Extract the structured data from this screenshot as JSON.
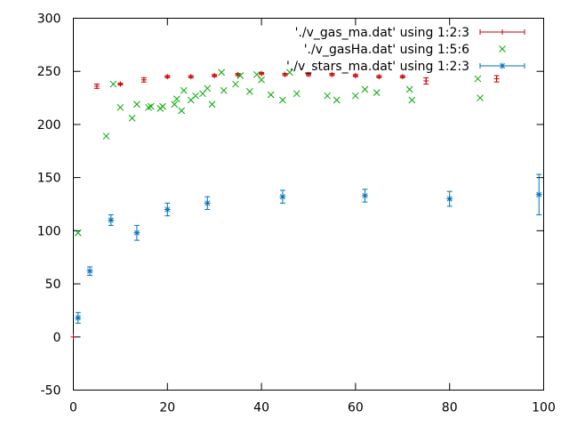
{
  "chart_data": {
    "type": "scatter",
    "title": "",
    "xlabel": "",
    "ylabel": "",
    "xlim": [
      0,
      100
    ],
    "ylim": [
      -50,
      300
    ],
    "xticks": [
      0,
      20,
      40,
      60,
      80,
      100
    ],
    "yticks": [
      -50,
      0,
      50,
      100,
      150,
      200,
      250,
      300
    ],
    "grid": false,
    "legend_position": "top-right",
    "series": [
      {
        "name": "'./v_gas_ma.dat' using 1:2:3",
        "color": "#cc0000",
        "marker": "plus-errorbar",
        "points": [
          {
            "x": 0,
            "y": 0,
            "err": 0
          },
          {
            "x": 5,
            "y": 236,
            "err": 2
          },
          {
            "x": 10,
            "y": 238,
            "err": 1
          },
          {
            "x": 15,
            "y": 242,
            "err": 2
          },
          {
            "x": 20,
            "y": 245,
            "err": 1
          },
          {
            "x": 25,
            "y": 245,
            "err": 1
          },
          {
            "x": 30,
            "y": 246,
            "err": 1
          },
          {
            "x": 35,
            "y": 247,
            "err": 1
          },
          {
            "x": 40,
            "y": 248,
            "err": 1
          },
          {
            "x": 45,
            "y": 247,
            "err": 1
          },
          {
            "x": 50,
            "y": 247,
            "err": 1
          },
          {
            "x": 55,
            "y": 247,
            "err": 1
          },
          {
            "x": 60,
            "y": 246,
            "err": 1
          },
          {
            "x": 65,
            "y": 245,
            "err": 1
          },
          {
            "x": 70,
            "y": 245,
            "err": 1
          },
          {
            "x": 75,
            "y": 241,
            "err": 3
          },
          {
            "x": 90,
            "y": 243,
            "err": 3
          }
        ]
      },
      {
        "name": "'./v_gasHa.dat' using 1:5:6",
        "color": "#00aa00",
        "marker": "cross",
        "points": [
          {
            "x": 1,
            "y": 98
          },
          {
            "x": 7,
            "y": 189
          },
          {
            "x": 8.5,
            "y": 238
          },
          {
            "x": 10,
            "y": 216
          },
          {
            "x": 12.5,
            "y": 206
          },
          {
            "x": 13.5,
            "y": 219
          },
          {
            "x": 16,
            "y": 216
          },
          {
            "x": 16.5,
            "y": 217
          },
          {
            "x": 18.5,
            "y": 215
          },
          {
            "x": 19,
            "y": 217
          },
          {
            "x": 21.5,
            "y": 219
          },
          {
            "x": 22,
            "y": 224
          },
          {
            "x": 23,
            "y": 213
          },
          {
            "x": 23.5,
            "y": 232
          },
          {
            "x": 25,
            "y": 223
          },
          {
            "x": 26,
            "y": 227
          },
          {
            "x": 27.5,
            "y": 229
          },
          {
            "x": 28.5,
            "y": 234
          },
          {
            "x": 29.5,
            "y": 219
          },
          {
            "x": 31.5,
            "y": 249
          },
          {
            "x": 32,
            "y": 232
          },
          {
            "x": 34.5,
            "y": 238
          },
          {
            "x": 35.5,
            "y": 246
          },
          {
            "x": 37.5,
            "y": 231
          },
          {
            "x": 39,
            "y": 247
          },
          {
            "x": 40,
            "y": 242
          },
          {
            "x": 42,
            "y": 228
          },
          {
            "x": 44.5,
            "y": 223
          },
          {
            "x": 46,
            "y": 249
          },
          {
            "x": 47.5,
            "y": 229
          },
          {
            "x": 54,
            "y": 227
          },
          {
            "x": 56,
            "y": 223
          },
          {
            "x": 60,
            "y": 227
          },
          {
            "x": 62,
            "y": 233
          },
          {
            "x": 64.5,
            "y": 230
          },
          {
            "x": 71.5,
            "y": 233
          },
          {
            "x": 72,
            "y": 223
          },
          {
            "x": 86,
            "y": 243
          },
          {
            "x": 86.5,
            "y": 225
          }
        ]
      },
      {
        "name": "'./v_stars_ma.dat' using 1:2:3",
        "color": "#0072bd",
        "marker": "star-errorbar",
        "points": [
          {
            "x": 1,
            "y": 18,
            "err": 5
          },
          {
            "x": 3.5,
            "y": 62,
            "err": 4
          },
          {
            "x": 8,
            "y": 110,
            "err": 5
          },
          {
            "x": 13.5,
            "y": 98,
            "err": 7
          },
          {
            "x": 20,
            "y": 120,
            "err": 6
          },
          {
            "x": 28.5,
            "y": 126,
            "err": 6
          },
          {
            "x": 44.5,
            "y": 132,
            "err": 6
          },
          {
            "x": 62,
            "y": 133,
            "err": 6
          },
          {
            "x": 80,
            "y": 130,
            "err": 7
          },
          {
            "x": 99,
            "y": 134,
            "err": 19
          }
        ]
      }
    ]
  }
}
